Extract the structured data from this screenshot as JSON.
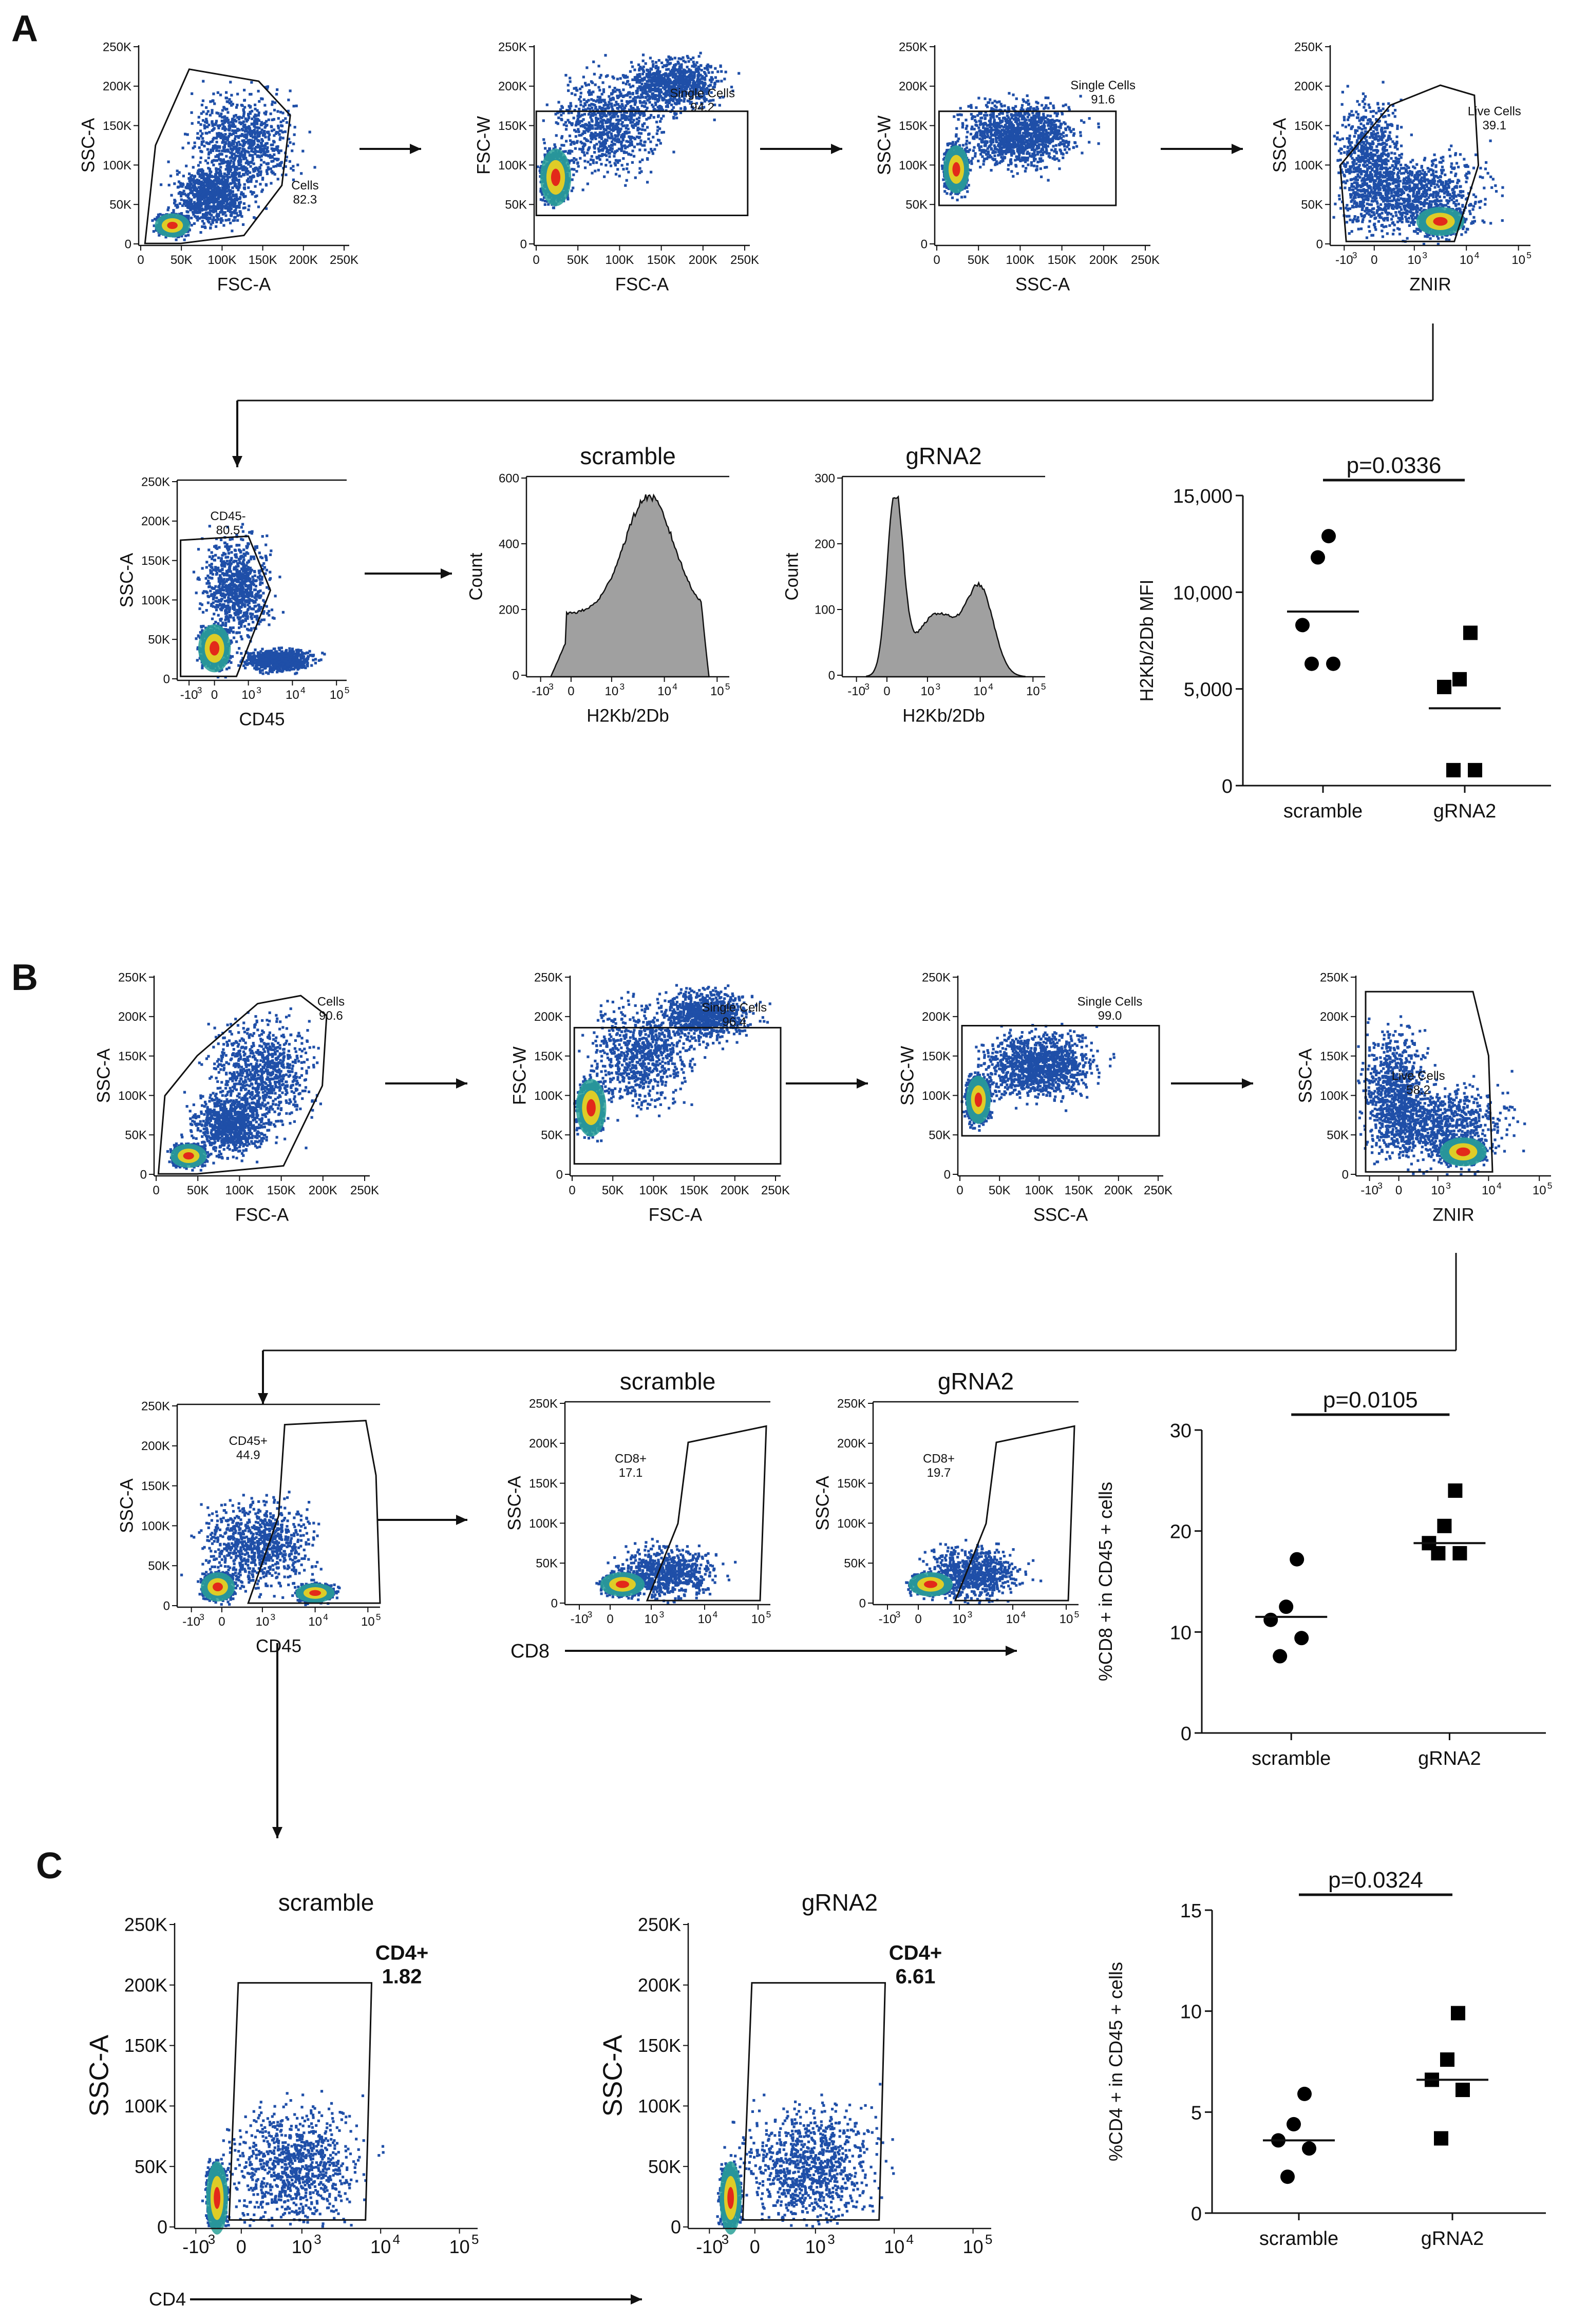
{
  "panels": {
    "A": "A",
    "B": "B",
    "C": "C"
  },
  "colors": {
    "cool": "#1f4fa8",
    "mid": "#2aa198",
    "warm": "#f2d21b",
    "hot": "#e3291a",
    "hist": "#a0a0a0",
    "line": "#111111"
  },
  "flow": {
    "A_gating": [
      {
        "xlabel": "FSC-A",
        "ylabel": "SSC-A",
        "gate": "Cells",
        "value": "82.3"
      },
      {
        "xlabel": "FSC-A",
        "ylabel": "FSC-W",
        "gate": "Single Cells",
        "value": "94.2"
      },
      {
        "xlabel": "SSC-A",
        "ylabel": "SSC-W",
        "gate": "Single Cells",
        "value": "91.6"
      },
      {
        "xlabel": "ZNIR",
        "ylabel": "SSC-A",
        "gate": "Live Cells",
        "value": "39.1"
      },
      {
        "xlabel": "CD45",
        "ylabel": "SSC-A",
        "gate": "CD45-",
        "value": "80.5"
      }
    ],
    "A_hist": [
      {
        "title": "scramble",
        "xlabel": "H2Kb/2Db",
        "ylabel": "Count",
        "yticks": [
          "0",
          "200",
          "400",
          "600"
        ],
        "ymax": 600
      },
      {
        "title": "gRNA2",
        "xlabel": "H2Kb/2Db",
        "ylabel": "Count",
        "yticks": [
          "0",
          "100",
          "200",
          "300"
        ],
        "ymax": 300
      }
    ],
    "B_gating": [
      {
        "xlabel": "FSC-A",
        "ylabel": "SSC-A",
        "gate": "Cells",
        "value": "90.6"
      },
      {
        "xlabel": "FSC-A",
        "ylabel": "FSC-W",
        "gate": "Single Cells",
        "value": "96.4"
      },
      {
        "xlabel": "SSC-A",
        "ylabel": "SSC-W",
        "gate": "Single Cells",
        "value": "99.0"
      },
      {
        "xlabel": "ZNIR",
        "ylabel": "SSC-A",
        "gate": "Live Cells",
        "value": "58.2"
      },
      {
        "xlabel": "CD45",
        "ylabel": "SSC-A",
        "gate": "CD45+",
        "value": "44.9"
      }
    ],
    "B_cd8": [
      {
        "title": "scramble",
        "ylabel": "SSC-A",
        "gate": "CD8+",
        "value": "17.1"
      },
      {
        "title": "gRNA2",
        "ylabel": "SSC-A",
        "gate": "CD8+",
        "value": "19.7"
      }
    ],
    "B_cd8_axis": "CD8",
    "C_cd4": [
      {
        "title": "scramble",
        "ylabel": "SSC-A",
        "gate": "CD4+",
        "value": "1.82"
      },
      {
        "title": "gRNA2",
        "ylabel": "SSC-A",
        "gate": "CD4+",
        "value": "6.61"
      }
    ],
    "C_cd4_axis": "CD4",
    "k_ticks": [
      "0",
      "50K",
      "100K",
      "150K",
      "200K",
      "250K"
    ],
    "log_ticks": [
      "-10",
      "0",
      "10",
      "10",
      "10"
    ],
    "log_exps": [
      "3",
      "",
      "3",
      "4",
      "5"
    ]
  },
  "chart_data": [
    {
      "type": "scatter",
      "panel": "A",
      "title": "",
      "annotation": "p=0.0336",
      "xlabel": "",
      "ylabel": "H2Kb/2Db MFI",
      "categories": [
        "scramble",
        "gRNA2"
      ],
      "ylim": [
        0,
        15000
      ],
      "yticks": [
        0,
        5000,
        10000,
        15000
      ],
      "ytick_labels": [
        "0",
        "5,000",
        "10,000",
        "15,000"
      ],
      "series": [
        {
          "name": "scramble",
          "marker": "circle",
          "values": [
            12900,
            11800,
            8300,
            6300,
            6300
          ],
          "mean": 9000
        },
        {
          "name": "gRNA2",
          "marker": "square",
          "values": [
            7900,
            5500,
            5100,
            800,
            800
          ],
          "mean": 4000
        }
      ]
    },
    {
      "type": "scatter",
      "panel": "B",
      "title": "",
      "annotation": "p=0.0105",
      "xlabel": "",
      "ylabel": "%CD8 + in CD45 + cells",
      "categories": [
        "scramble",
        "gRNA2"
      ],
      "ylim": [
        0,
        30
      ],
      "yticks": [
        0,
        10,
        20,
        30
      ],
      "ytick_labels": [
        "0",
        "10",
        "20",
        "30"
      ],
      "series": [
        {
          "name": "scramble",
          "marker": "circle",
          "values": [
            17.2,
            12.5,
            11.2,
            9.4,
            7.6
          ],
          "mean": 11.5
        },
        {
          "name": "gRNA2",
          "marker": "square",
          "values": [
            24,
            20.5,
            18.8,
            17.8,
            17.8
          ],
          "mean": 18.8
        }
      ]
    },
    {
      "type": "scatter",
      "panel": "C",
      "title": "",
      "annotation": "p=0.0324",
      "xlabel": "",
      "ylabel": "%CD4 + in CD45 + cells",
      "categories": [
        "scramble",
        "gRNA2"
      ],
      "ylim": [
        0,
        15
      ],
      "yticks": [
        0,
        5,
        10,
        15
      ],
      "ytick_labels": [
        "0",
        "5",
        "10",
        "15"
      ],
      "series": [
        {
          "name": "scramble",
          "marker": "circle",
          "values": [
            5.9,
            4.4,
            3.6,
            3.2,
            1.8
          ],
          "mean": 3.6
        },
        {
          "name": "gRNA2",
          "marker": "square",
          "values": [
            9.9,
            7.6,
            6.6,
            6.1,
            3.7
          ],
          "mean": 6.6
        }
      ]
    }
  ]
}
